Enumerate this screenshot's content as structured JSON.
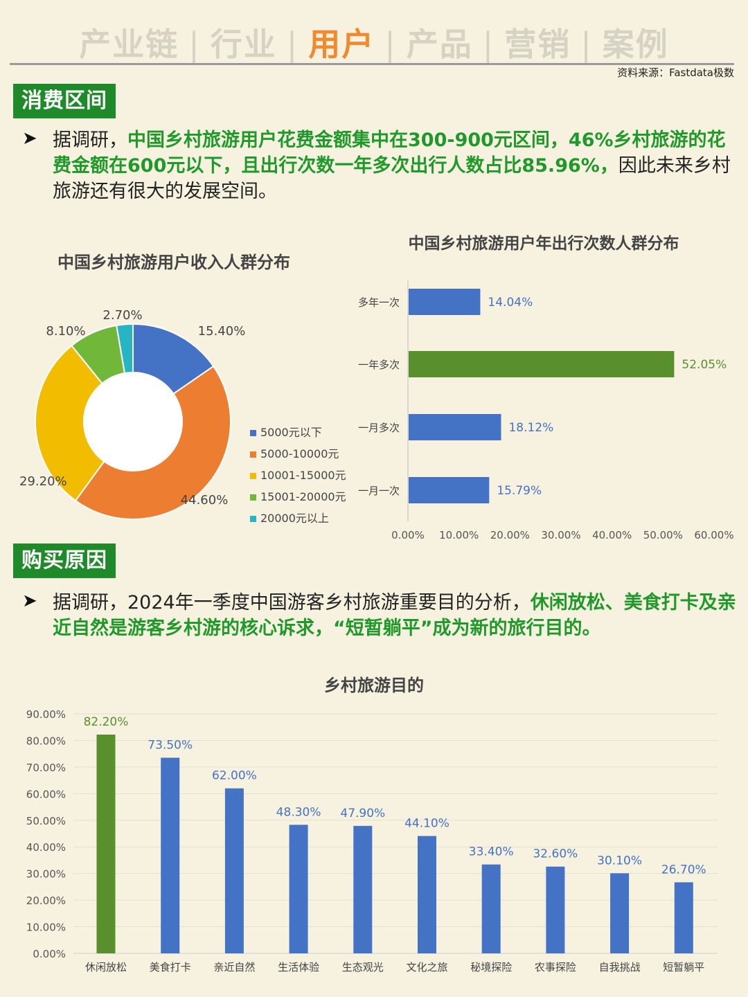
{
  "nav": {
    "tabs": [
      {
        "label": "产业链",
        "active": false
      },
      {
        "label": "行业",
        "active": false
      },
      {
        "label": "用户",
        "active": true
      },
      {
        "label": "产品",
        "active": false
      },
      {
        "label": "营销",
        "active": false
      },
      {
        "label": "案例",
        "active": false
      }
    ],
    "separator": "|"
  },
  "source": "资料来源：Fastdata极数",
  "section1": {
    "tag": "消费区间",
    "bullet": "➤",
    "text_plain1": "据调研，",
    "text_highlight": "中国乡村旅游用户花费金额集中在300-900元区间，46%乡村旅游的花费金额在600元以下，且出行次数一年多次出行人数占比85.96%，",
    "text_plain2": "因此未来乡村旅游还有很大的发展空间。"
  },
  "section2": {
    "tag": "购买原因",
    "bullet": "➤",
    "text_plain1": "据调研，2024年一季度中国游客乡村旅游重要目的分析，",
    "text_highlight": "休闲放松、美食打卡及亲近自然是游客乡村游的核心诉求，“短暂躺平”成为新的旅行目的。"
  },
  "colors": {
    "blue": "#4472c4",
    "orange": "#ed7d31",
    "yellow": "#f2bd00",
    "green_light": "#70b73a",
    "teal": "#28b5c3",
    "green_dark": "#5a8f2e"
  },
  "chart_data": [
    {
      "type": "pie",
      "title": "中国乡村旅游用户收入人群分布",
      "legend_position": "right",
      "slices": [
        {
          "name": "5000元以下",
          "value": 15.4,
          "label": "15.40%",
          "color": "#4472c4"
        },
        {
          "name": "5000-10000元",
          "value": 44.6,
          "label": "44.60%",
          "color": "#ed7d31"
        },
        {
          "name": "10001-15000元",
          "value": 29.2,
          "label": "29.20%",
          "color": "#f2bd00"
        },
        {
          "name": "15001-20000元",
          "value": 8.1,
          "label": "8.10%",
          "color": "#70b73a"
        },
        {
          "name": "20000元以上",
          "value": 2.7,
          "label": "2.70%",
          "color": "#28b5c3"
        }
      ]
    },
    {
      "type": "bar",
      "orientation": "horizontal",
      "title": "中国乡村旅游用户年出行次数人群分布",
      "categories": [
        "多年一次",
        "一年多次",
        "一月多次",
        "一月一次"
      ],
      "values": [
        14.04,
        52.05,
        18.12,
        15.79
      ],
      "labels": [
        "14.04%",
        "52.05%",
        "18.12%",
        "15.79%"
      ],
      "highlight_index": 1,
      "xlim": [
        0,
        60
      ],
      "ticks": [
        "0.00%",
        "10.00%",
        "20.00%",
        "30.00%",
        "40.00%",
        "50.00%",
        "60.00%"
      ],
      "grid": false
    },
    {
      "type": "bar",
      "title": "乡村旅游目的",
      "categories": [
        "休闲放松",
        "美食打卡",
        "亲近自然",
        "生活体验",
        "生态观光",
        "文化之旅",
        "秘境探险",
        "农事探险",
        "自我挑战",
        "短暂躺平"
      ],
      "values": [
        82.2,
        73.5,
        62.0,
        48.3,
        47.9,
        44.1,
        33.4,
        32.6,
        30.1,
        26.7
      ],
      "labels": [
        "82.20%",
        "73.50%",
        "62.00%",
        "48.30%",
        "47.90%",
        "44.10%",
        "33.40%",
        "32.60%",
        "30.10%",
        "26.70%"
      ],
      "highlight_index": 0,
      "ylim": [
        0,
        90
      ],
      "ticks": [
        "0.00%",
        "10.00%",
        "20.00%",
        "30.00%",
        "40.00%",
        "50.00%",
        "60.00%",
        "70.00%",
        "80.00%",
        "90.00%"
      ],
      "grid": true
    }
  ]
}
